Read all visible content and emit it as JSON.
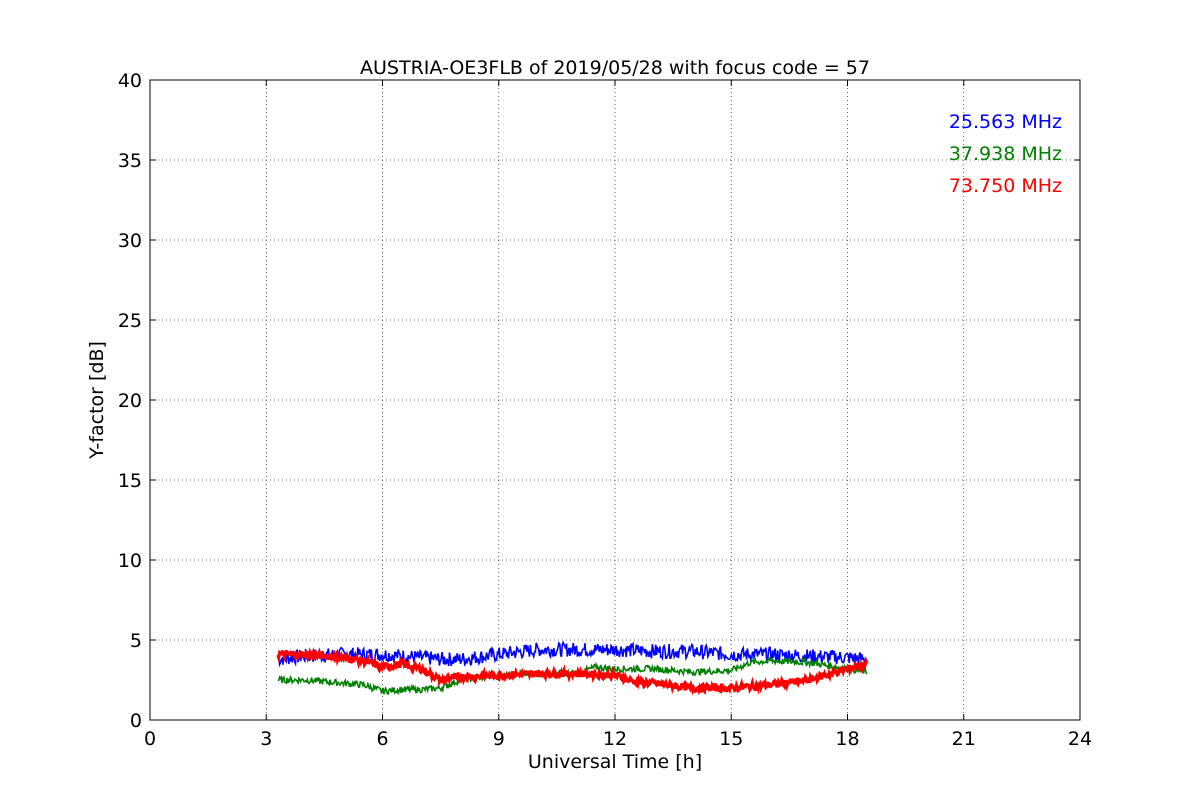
{
  "chart_data": {
    "type": "line",
    "title": "AUSTRIA-OE3FLB of 2019/05/28 with focus code = 57",
    "xlabel": "Universal Time [h]",
    "ylabel": "Y-factor [dB]",
    "xlim": [
      0,
      24
    ],
    "ylim": [
      0,
      40
    ],
    "xticks": [
      0,
      3,
      6,
      9,
      12,
      15,
      18,
      21,
      24
    ],
    "yticks": [
      0,
      5,
      10,
      15,
      20,
      25,
      30,
      35,
      40
    ],
    "grid": true,
    "legend_position": "top-right",
    "series": [
      {
        "name": "25.563 MHz",
        "color": "#0000ff",
        "x": [
          3.3,
          4.0,
          5.0,
          6.0,
          7.0,
          7.5,
          8.0,
          9.0,
          10.0,
          11.0,
          12.0,
          13.0,
          14.0,
          15.0,
          16.0,
          17.0,
          18.0,
          18.5
        ],
        "y": [
          3.8,
          4.0,
          4.1,
          4.1,
          3.9,
          3.8,
          3.8,
          4.1,
          4.4,
          4.4,
          4.4,
          4.3,
          4.3,
          4.1,
          4.1,
          4.0,
          3.9,
          3.8
        ]
      },
      {
        "name": "37.938 MHz",
        "color": "#008000",
        "x": [
          3.3,
          4.0,
          5.0,
          5.5,
          6.0,
          6.5,
          7.0,
          7.5,
          8.0,
          9.0,
          10.0,
          11.0,
          11.5,
          12.0,
          13.0,
          14.0,
          15.0,
          15.5,
          16.0,
          17.0,
          18.0,
          18.5
        ],
        "y": [
          2.5,
          2.5,
          2.3,
          2.2,
          1.8,
          1.9,
          1.9,
          2.0,
          2.5,
          2.8,
          2.9,
          2.9,
          3.3,
          3.2,
          3.2,
          3.0,
          3.1,
          3.6,
          3.7,
          3.6,
          3.2,
          3.0
        ]
      },
      {
        "name": "73.750 MHz",
        "color": "#ff0000",
        "x": [
          3.3,
          4.0,
          5.0,
          5.5,
          6.0,
          6.5,
          7.0,
          7.5,
          8.0,
          9.0,
          10.0,
          11.0,
          12.0,
          12.5,
          13.0,
          14.0,
          15.0,
          16.0,
          17.0,
          18.0,
          18.5
        ],
        "y": [
          4.1,
          4.1,
          3.9,
          3.7,
          3.3,
          3.5,
          3.2,
          2.5,
          2.7,
          2.8,
          2.9,
          2.9,
          2.8,
          2.4,
          2.3,
          2.0,
          2.0,
          2.2,
          2.5,
          3.2,
          3.5
        ]
      }
    ]
  }
}
